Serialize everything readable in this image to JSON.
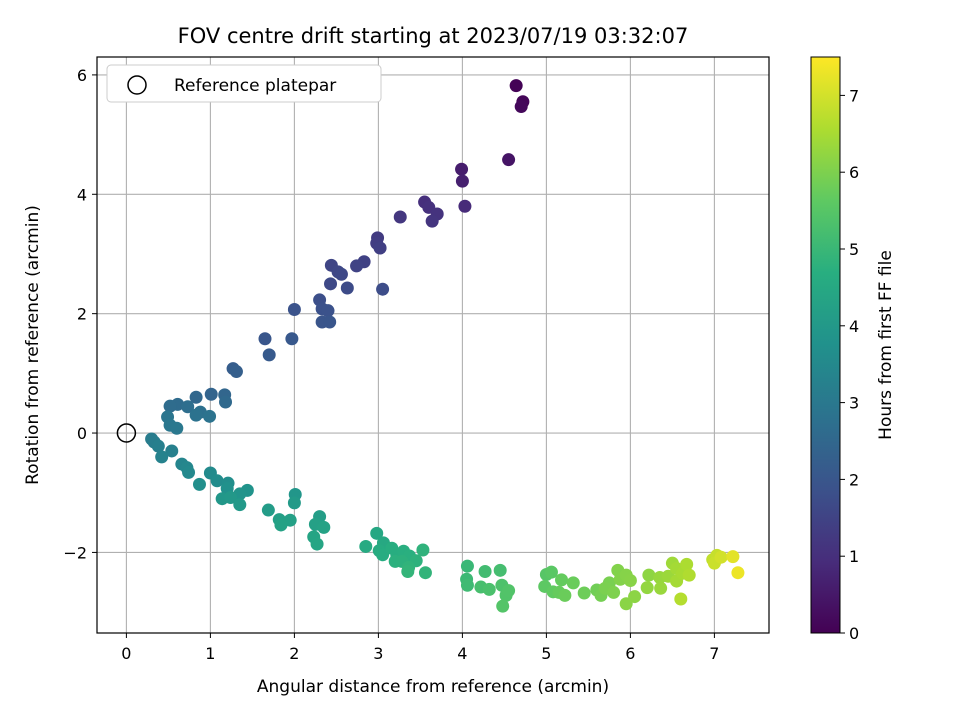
{
  "chart_data": {
    "type": "scatter",
    "title": "FOV centre drift starting at 2023/07/19 03:32:07",
    "xlabel": "Angular distance from reference (arcmin)",
    "ylabel": "Rotation from reference (arcmin)",
    "xlim": [
      -0.35,
      7.65
    ],
    "ylim": [
      -3.35,
      6.3
    ],
    "xticks": [
      0,
      1,
      2,
      3,
      4,
      5,
      6,
      7
    ],
    "yticks": [
      -2,
      0,
      2,
      4,
      6
    ],
    "grid": true,
    "legend": {
      "placement": "top-left",
      "entries": [
        "Reference platepar"
      ]
    },
    "reference_point": {
      "x": 0,
      "y": 0,
      "label": "Reference platepar"
    },
    "colorbar": {
      "label": "Hours from first FF file",
      "colormap": "viridis",
      "range": [
        0,
        7.5
      ],
      "ticks": [
        0,
        1,
        2,
        3,
        4,
        5,
        6,
        7
      ]
    },
    "points": [
      {
        "x": 4.64,
        "y": 5.82,
        "t": 0.05
      },
      {
        "x": 4.72,
        "y": 5.55,
        "t": 0.1
      },
      {
        "x": 4.7,
        "y": 5.47,
        "t": 0.15
      },
      {
        "x": 4.55,
        "y": 4.58,
        "t": 0.4
      },
      {
        "x": 3.99,
        "y": 4.42,
        "t": 0.6
      },
      {
        "x": 4.0,
        "y": 4.22,
        "t": 0.65
      },
      {
        "x": 4.03,
        "y": 3.8,
        "t": 0.9
      },
      {
        "x": 3.55,
        "y": 3.87,
        "t": 1.0
      },
      {
        "x": 3.6,
        "y": 3.78,
        "t": 1.05
      },
      {
        "x": 3.7,
        "y": 3.67,
        "t": 1.1
      },
      {
        "x": 3.64,
        "y": 3.55,
        "t": 1.15
      },
      {
        "x": 3.26,
        "y": 3.62,
        "t": 1.2
      },
      {
        "x": 2.99,
        "y": 3.27,
        "t": 1.3
      },
      {
        "x": 2.98,
        "y": 3.18,
        "t": 1.35
      },
      {
        "x": 3.02,
        "y": 3.1,
        "t": 1.4
      },
      {
        "x": 2.83,
        "y": 2.87,
        "t": 1.45
      },
      {
        "x": 2.74,
        "y": 2.8,
        "t": 1.5
      },
      {
        "x": 2.44,
        "y": 2.81,
        "t": 1.55
      },
      {
        "x": 2.52,
        "y": 2.7,
        "t": 1.6
      },
      {
        "x": 2.56,
        "y": 2.66,
        "t": 1.62
      },
      {
        "x": 2.43,
        "y": 2.5,
        "t": 1.65
      },
      {
        "x": 2.63,
        "y": 2.43,
        "t": 1.7
      },
      {
        "x": 3.05,
        "y": 2.41,
        "t": 1.75
      },
      {
        "x": 2.3,
        "y": 2.23,
        "t": 1.8
      },
      {
        "x": 2.33,
        "y": 2.08,
        "t": 1.85
      },
      {
        "x": 2.4,
        "y": 2.05,
        "t": 1.87
      },
      {
        "x": 2.0,
        "y": 2.07,
        "t": 1.9
      },
      {
        "x": 2.33,
        "y": 1.86,
        "t": 1.95
      },
      {
        "x": 2.42,
        "y": 1.86,
        "t": 1.97
      },
      {
        "x": 1.65,
        "y": 1.58,
        "t": 2.0
      },
      {
        "x": 1.97,
        "y": 1.58,
        "t": 2.05
      },
      {
        "x": 1.7,
        "y": 1.31,
        "t": 2.1
      },
      {
        "x": 1.27,
        "y": 1.08,
        "t": 2.2
      },
      {
        "x": 1.31,
        "y": 1.03,
        "t": 2.25
      },
      {
        "x": 1.01,
        "y": 0.65,
        "t": 2.4
      },
      {
        "x": 1.17,
        "y": 0.64,
        "t": 2.45
      },
      {
        "x": 0.83,
        "y": 0.6,
        "t": 2.5
      },
      {
        "x": 1.18,
        "y": 0.52,
        "t": 2.55
      },
      {
        "x": 0.61,
        "y": 0.48,
        "t": 2.6
      },
      {
        "x": 0.52,
        "y": 0.45,
        "t": 2.65
      },
      {
        "x": 0.73,
        "y": 0.44,
        "t": 2.7
      },
      {
        "x": 0.88,
        "y": 0.35,
        "t": 2.75
      },
      {
        "x": 0.83,
        "y": 0.3,
        "t": 2.8
      },
      {
        "x": 0.99,
        "y": 0.28,
        "t": 2.85
      },
      {
        "x": 0.49,
        "y": 0.27,
        "t": 2.9
      },
      {
        "x": 0.52,
        "y": 0.13,
        "t": 2.95
      },
      {
        "x": 0.6,
        "y": 0.08,
        "t": 3.0
      },
      {
        "x": 0.3,
        "y": -0.1,
        "t": 3.1
      },
      {
        "x": 0.33,
        "y": -0.15,
        "t": 3.15
      },
      {
        "x": 0.38,
        "y": -0.22,
        "t": 3.2
      },
      {
        "x": 0.54,
        "y": -0.3,
        "t": 3.25
      },
      {
        "x": 0.42,
        "y": -0.4,
        "t": 3.3
      },
      {
        "x": 0.66,
        "y": -0.52,
        "t": 3.4
      },
      {
        "x": 0.72,
        "y": -0.58,
        "t": 3.45
      },
      {
        "x": 0.74,
        "y": -0.66,
        "t": 3.5
      },
      {
        "x": 1.0,
        "y": -0.67,
        "t": 3.55
      },
      {
        "x": 1.08,
        "y": -0.8,
        "t": 3.6
      },
      {
        "x": 1.21,
        "y": -0.84,
        "t": 3.65
      },
      {
        "x": 0.87,
        "y": -0.86,
        "t": 3.7
      },
      {
        "x": 1.2,
        "y": -0.93,
        "t": 3.75
      },
      {
        "x": 1.44,
        "y": -0.96,
        "t": 3.8
      },
      {
        "x": 1.35,
        "y": -1.02,
        "t": 3.85
      },
      {
        "x": 2.01,
        "y": -1.03,
        "t": 3.9
      },
      {
        "x": 1.14,
        "y": -1.1,
        "t": 3.95
      },
      {
        "x": 1.24,
        "y": -1.08,
        "t": 3.97
      },
      {
        "x": 1.35,
        "y": -1.2,
        "t": 4.0
      },
      {
        "x": 2.0,
        "y": -1.17,
        "t": 4.05
      },
      {
        "x": 1.69,
        "y": -1.29,
        "t": 4.1
      },
      {
        "x": 2.3,
        "y": -1.4,
        "t": 4.15
      },
      {
        "x": 1.82,
        "y": -1.45,
        "t": 4.2
      },
      {
        "x": 1.95,
        "y": -1.46,
        "t": 4.22
      },
      {
        "x": 2.25,
        "y": -1.53,
        "t": 4.25
      },
      {
        "x": 1.84,
        "y": -1.54,
        "t": 4.27
      },
      {
        "x": 2.35,
        "y": -1.58,
        "t": 4.3
      },
      {
        "x": 2.23,
        "y": -1.74,
        "t": 4.35
      },
      {
        "x": 2.27,
        "y": -1.86,
        "t": 4.4
      },
      {
        "x": 2.98,
        "y": -1.68,
        "t": 4.45
      },
      {
        "x": 3.06,
        "y": -1.84,
        "t": 4.5
      },
      {
        "x": 2.85,
        "y": -1.9,
        "t": 4.55
      },
      {
        "x": 3.01,
        "y": -1.97,
        "t": 4.6
      },
      {
        "x": 3.05,
        "y": -2.04,
        "t": 4.62
      },
      {
        "x": 3.16,
        "y": -1.93,
        "t": 4.65
      },
      {
        "x": 3.22,
        "y": -2.05,
        "t": 4.67
      },
      {
        "x": 3.3,
        "y": -1.98,
        "t": 4.7
      },
      {
        "x": 3.37,
        "y": -2.06,
        "t": 4.72
      },
      {
        "x": 3.2,
        "y": -2.15,
        "t": 4.75
      },
      {
        "x": 3.28,
        "y": -2.15,
        "t": 4.77
      },
      {
        "x": 3.45,
        "y": -2.14,
        "t": 4.8
      },
      {
        "x": 3.53,
        "y": -1.96,
        "t": 4.82
      },
      {
        "x": 3.36,
        "y": -2.25,
        "t": 4.85
      },
      {
        "x": 3.56,
        "y": -2.34,
        "t": 4.87
      },
      {
        "x": 3.35,
        "y": -2.32,
        "t": 4.9
      },
      {
        "x": 4.06,
        "y": -2.23,
        "t": 5.0
      },
      {
        "x": 4.05,
        "y": -2.45,
        "t": 5.05
      },
      {
        "x": 4.06,
        "y": -2.55,
        "t": 5.1
      },
      {
        "x": 4.27,
        "y": -2.32,
        "t": 5.15
      },
      {
        "x": 4.45,
        "y": -2.3,
        "t": 5.2
      },
      {
        "x": 4.22,
        "y": -2.58,
        "t": 5.25
      },
      {
        "x": 4.32,
        "y": -2.62,
        "t": 5.3
      },
      {
        "x": 4.47,
        "y": -2.55,
        "t": 5.35
      },
      {
        "x": 4.52,
        "y": -2.72,
        "t": 5.4
      },
      {
        "x": 4.55,
        "y": -2.64,
        "t": 5.42
      },
      {
        "x": 4.48,
        "y": -2.9,
        "t": 5.45
      },
      {
        "x": 5.0,
        "y": -2.37,
        "t": 5.5
      },
      {
        "x": 5.06,
        "y": -2.33,
        "t": 5.55
      },
      {
        "x": 4.98,
        "y": -2.57,
        "t": 5.6
      },
      {
        "x": 5.08,
        "y": -2.66,
        "t": 5.65
      },
      {
        "x": 5.18,
        "y": -2.46,
        "t": 5.7
      },
      {
        "x": 5.15,
        "y": -2.67,
        "t": 5.72
      },
      {
        "x": 5.32,
        "y": -2.51,
        "t": 5.75
      },
      {
        "x": 5.22,
        "y": -2.72,
        "t": 5.77
      },
      {
        "x": 5.45,
        "y": -2.68,
        "t": 5.8
      },
      {
        "x": 5.6,
        "y": -2.63,
        "t": 5.85
      },
      {
        "x": 5.65,
        "y": -2.72,
        "t": 5.9
      },
      {
        "x": 5.75,
        "y": -2.51,
        "t": 5.95
      },
      {
        "x": 5.7,
        "y": -2.6,
        "t": 5.97
      },
      {
        "x": 5.8,
        "y": -2.67,
        "t": 6.0
      },
      {
        "x": 5.85,
        "y": -2.3,
        "t": 6.05
      },
      {
        "x": 5.88,
        "y": -2.45,
        "t": 6.07
      },
      {
        "x": 5.95,
        "y": -2.38,
        "t": 6.1
      },
      {
        "x": 6.0,
        "y": -2.47,
        "t": 6.12
      },
      {
        "x": 5.95,
        "y": -2.86,
        "t": 6.15
      },
      {
        "x": 6.05,
        "y": -2.74,
        "t": 6.17
      },
      {
        "x": 6.22,
        "y": -2.38,
        "t": 6.2
      },
      {
        "x": 6.2,
        "y": -2.59,
        "t": 6.25
      },
      {
        "x": 6.35,
        "y": -2.42,
        "t": 6.3
      },
      {
        "x": 6.36,
        "y": -2.6,
        "t": 6.32
      },
      {
        "x": 6.45,
        "y": -2.4,
        "t": 6.35
      },
      {
        "x": 6.5,
        "y": -2.18,
        "t": 6.4
      },
      {
        "x": 6.55,
        "y": -2.27,
        "t": 6.45
      },
      {
        "x": 6.55,
        "y": -2.48,
        "t": 6.47
      },
      {
        "x": 6.62,
        "y": -2.35,
        "t": 6.5
      },
      {
        "x": 6.67,
        "y": -2.2,
        "t": 6.55
      },
      {
        "x": 6.7,
        "y": -2.38,
        "t": 6.6
      },
      {
        "x": 6.6,
        "y": -2.78,
        "t": 6.65
      },
      {
        "x": 6.98,
        "y": -2.12,
        "t": 6.8
      },
      {
        "x": 7.03,
        "y": -2.05,
        "t": 6.85
      },
      {
        "x": 7.0,
        "y": -2.18,
        "t": 6.9
      },
      {
        "x": 7.08,
        "y": -2.08,
        "t": 7.0
      },
      {
        "x": 7.22,
        "y": -2.07,
        "t": 7.2
      },
      {
        "x": 7.28,
        "y": -2.34,
        "t": 7.3
      }
    ]
  }
}
